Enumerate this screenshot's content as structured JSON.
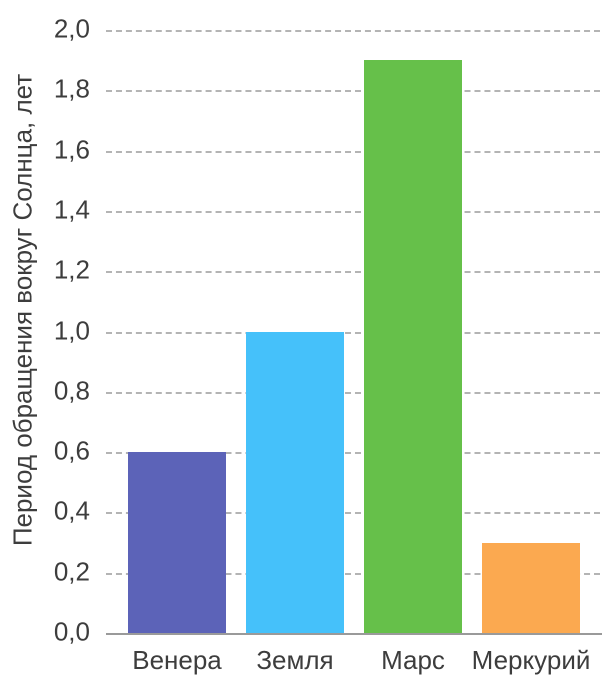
{
  "colors": {
    "background": "#ffffff",
    "text": "#3d3d3d",
    "gridline": "#b4b4b4",
    "axis_line": "#9a9a9a"
  },
  "chart_data": {
    "type": "bar",
    "title": "",
    "xlabel": "",
    "ylabel": "Период обращения вокруг Солнца, лет",
    "categories": [
      "Венера",
      "Земля",
      "Марс",
      "Меркурий"
    ],
    "values": [
      0.6,
      1.0,
      1.9,
      0.3
    ],
    "bar_colors": [
      "#5c63b8",
      "#45c1fa",
      "#66c04a",
      "#fba950"
    ],
    "ylim": [
      0.0,
      2.0
    ],
    "yticks": [
      {
        "value": 0.0,
        "label": "0,0"
      },
      {
        "value": 0.2,
        "label": "0,2"
      },
      {
        "value": 0.4,
        "label": "0,4"
      },
      {
        "value": 0.6,
        "label": "0,6"
      },
      {
        "value": 0.8,
        "label": "0,8"
      },
      {
        "value": 1.0,
        "label": "1,0"
      },
      {
        "value": 1.2,
        "label": "1,2"
      },
      {
        "value": 1.4,
        "label": "1,4"
      },
      {
        "value": 1.6,
        "label": "1,6"
      },
      {
        "value": 1.8,
        "label": "1,8"
      },
      {
        "value": 2.0,
        "label": "2,0"
      }
    ],
    "grid": "horizontal-dashed",
    "legend": "none",
    "decimal_separator": ","
  }
}
